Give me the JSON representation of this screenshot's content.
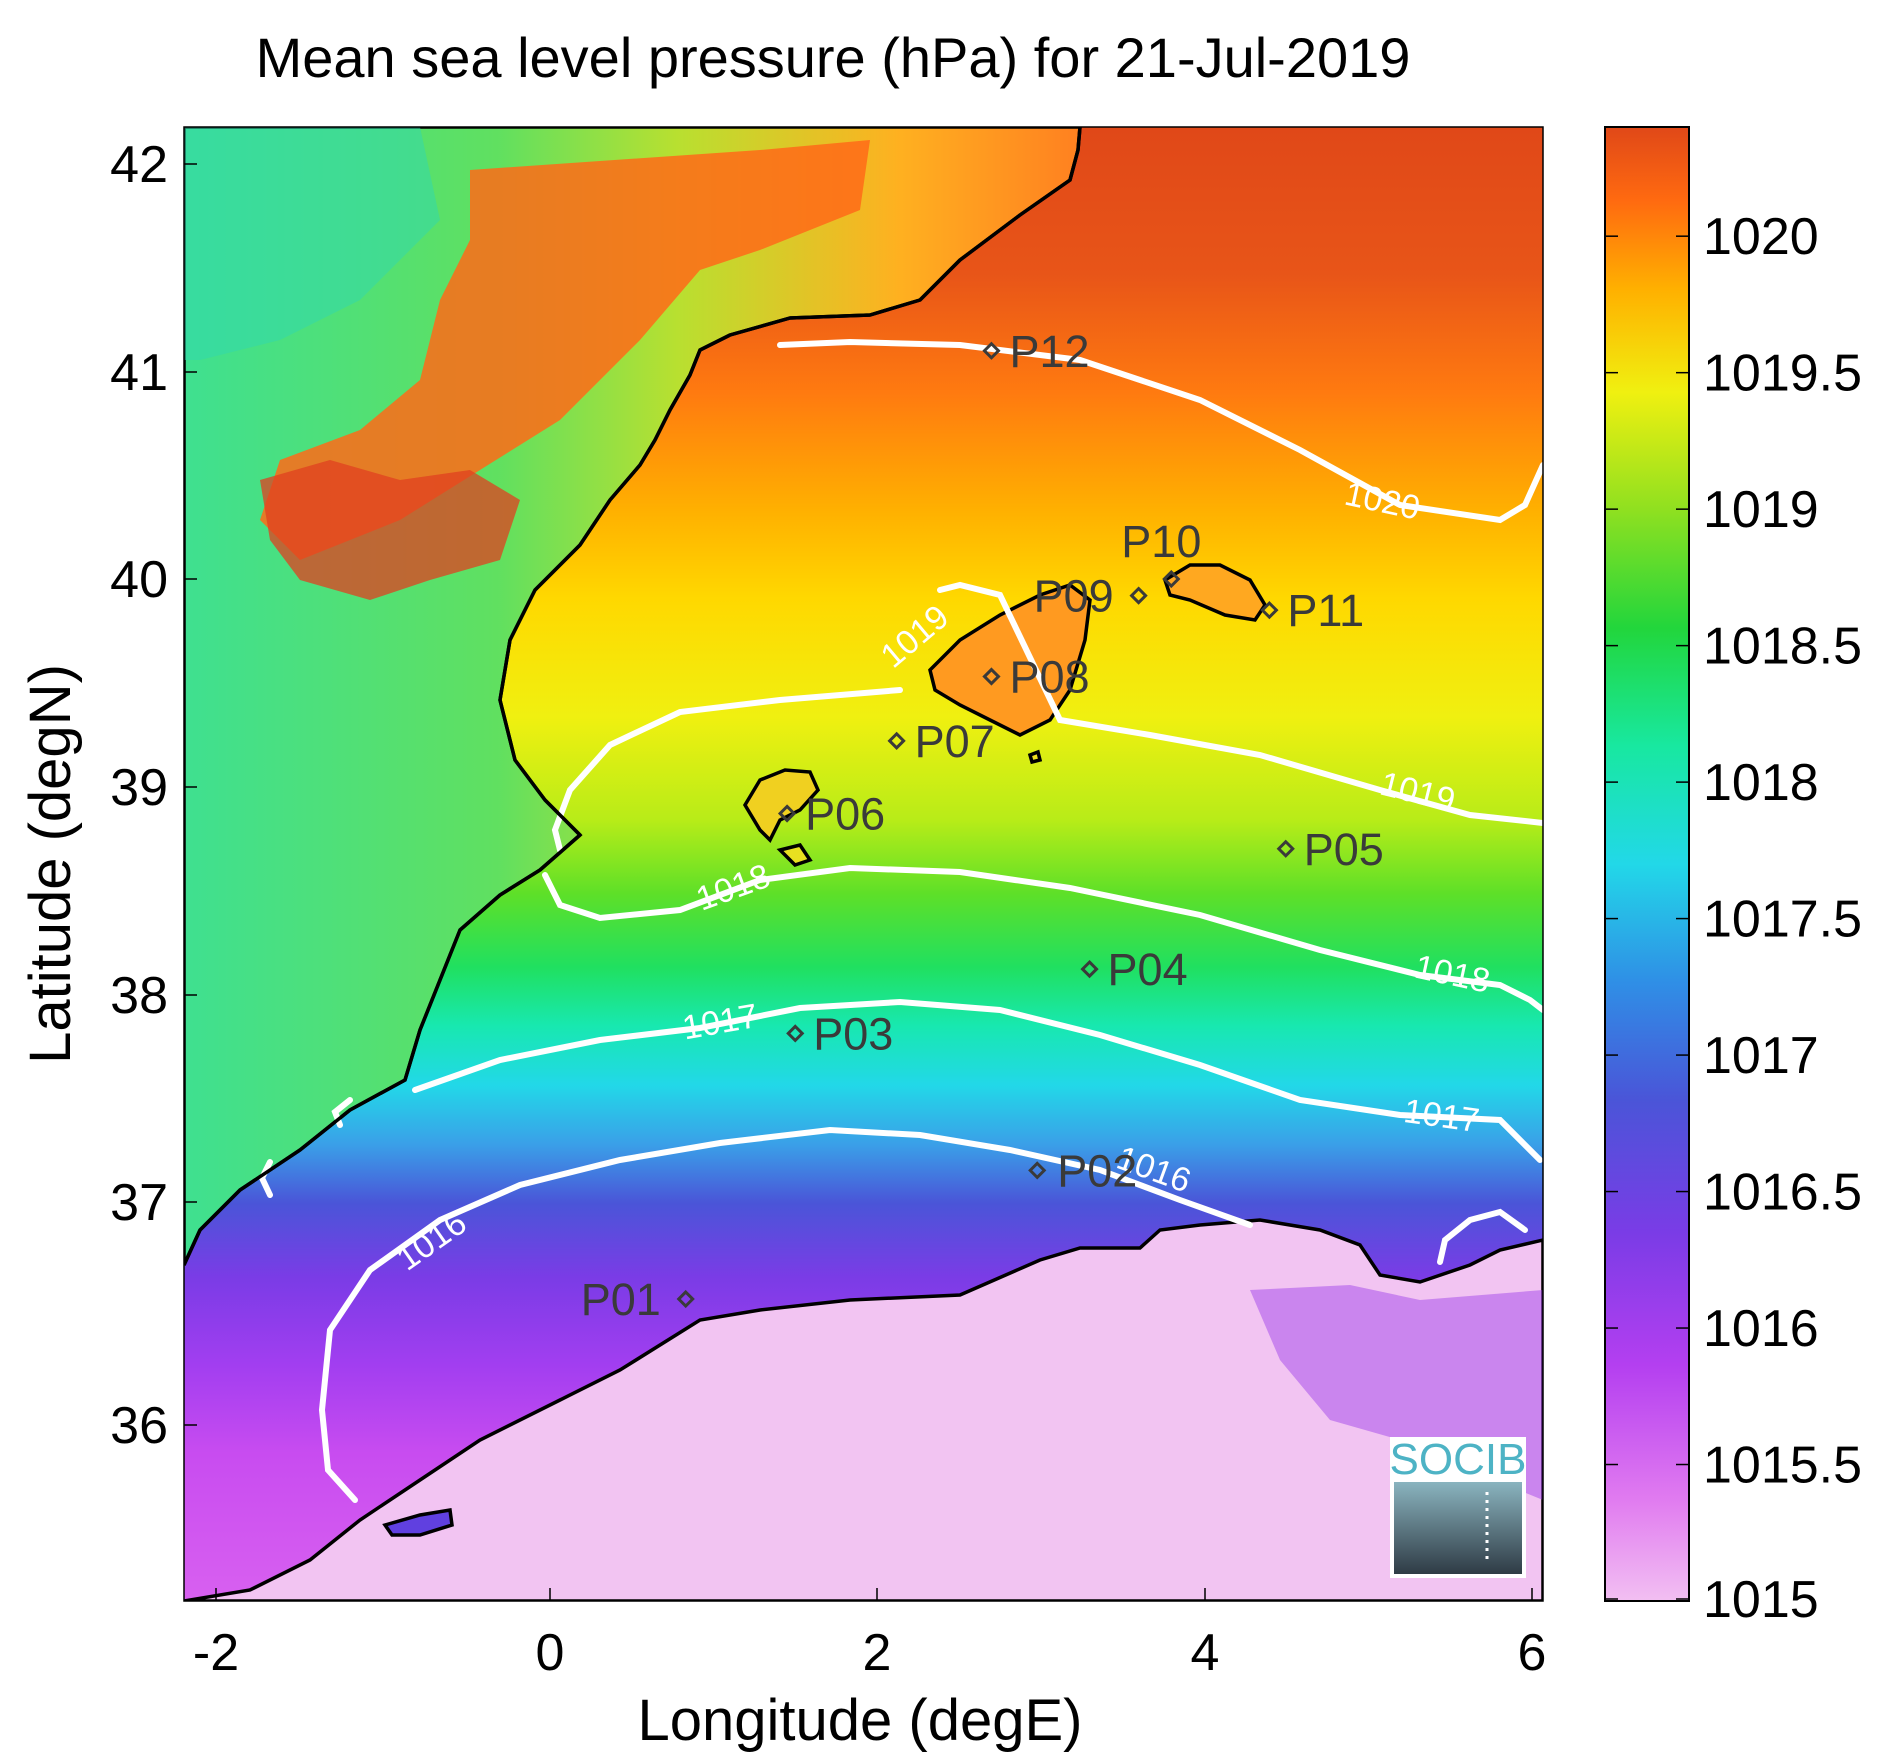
{
  "title": "Mean sea level pressure (hPa) for 21-Jul-2019",
  "xlabel": "Longitude (degE)",
  "ylabel": "Latitude (degN)",
  "x_ticks": [
    "-2",
    "0",
    "2",
    "4",
    "6"
  ],
  "y_ticks": [
    "42",
    "41",
    "40",
    "39",
    "38",
    "37",
    "36"
  ],
  "colorbar_ticks": [
    "1020",
    "1019.5",
    "1019",
    "1018.5",
    "1018",
    "1017.5",
    "1017",
    "1016.5",
    "1016",
    "1015.5",
    "1015"
  ],
  "contour_labels": [
    "1020",
    "1019",
    "1019",
    "1018",
    "1018",
    "1017",
    "1017",
    "1016",
    "1016"
  ],
  "logo_text": "SOCIB",
  "chart_data": {
    "type": "heatmap",
    "title": "Mean sea level pressure (hPa) for 21-Jul-2019",
    "xlabel": "Longitude (degE)",
    "ylabel": "Latitude (degN)",
    "xlim": [
      -2.2,
      6.1
    ],
    "ylim": [
      35.2,
      42.2
    ],
    "clim": [
      1015,
      1020.4
    ],
    "colormap": "rainbow (violet-blue-cyan-green-yellow-orange-red)",
    "contour_levels": [
      1016,
      1017,
      1018,
      1019,
      1020
    ],
    "stations": [
      {
        "name": "P01",
        "lon": 0.83,
        "lat": 36.53
      },
      {
        "name": "P02",
        "lon": 2.98,
        "lat": 37.15
      },
      {
        "name": "P03",
        "lon": 1.5,
        "lat": 37.81
      },
      {
        "name": "P04",
        "lon": 3.3,
        "lat": 38.12
      },
      {
        "name": "P05",
        "lon": 4.5,
        "lat": 38.7
      },
      {
        "name": "P06",
        "lon": 1.45,
        "lat": 38.87
      },
      {
        "name": "P07",
        "lon": 2.12,
        "lat": 39.22
      },
      {
        "name": "P08",
        "lon": 2.7,
        "lat": 39.53
      },
      {
        "name": "P09",
        "lon": 3.6,
        "lat": 39.92
      },
      {
        "name": "P10",
        "lon": 3.8,
        "lat": 40.0
      },
      {
        "name": "P11",
        "lon": 4.4,
        "lat": 39.85
      },
      {
        "name": "P12",
        "lon": 2.7,
        "lat": 41.1
      }
    ]
  }
}
